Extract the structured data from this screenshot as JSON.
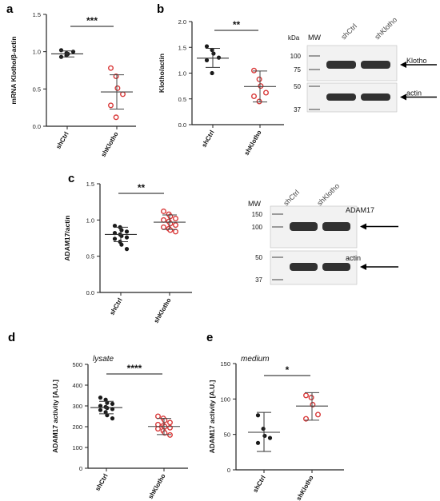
{
  "colors": {
    "ctrl": "#1a1a1a",
    "kd": "#d93a3a",
    "axis": "#222222",
    "blot_bg": "#f2f2f2",
    "band": "#1c1c1c"
  },
  "chart_data": [
    {
      "panel": "a",
      "type": "scatter",
      "ylabel": "mRNA Klotho/β-actin",
      "ylim": [
        0,
        1.5
      ],
      "yticks": [
        "0.0",
        "0.5",
        "1.0",
        "1.5"
      ],
      "categories": [
        "shCtrl",
        "shKlotho"
      ],
      "significance": "***",
      "series": [
        {
          "category": "shCtrl",
          "values": [
            0.93,
            0.95,
            0.97,
            1.0,
            1.02,
            0.98
          ],
          "mean": 0.97,
          "sd_low": 0.93,
          "sd_high": 1.01
        },
        {
          "category": "shKlotho",
          "values": [
            0.78,
            0.67,
            0.51,
            0.43,
            0.28,
            0.12
          ],
          "mean": 0.46,
          "sd_low": 0.23,
          "sd_high": 0.69
        }
      ]
    },
    {
      "panel": "b",
      "type": "scatter",
      "ylabel": "Klotho/actin",
      "ylim": [
        0,
        2.0
      ],
      "yticks": [
        "0.0",
        "0.5",
        "1.0",
        "1.5",
        "2.0"
      ],
      "categories": [
        "shCtrl",
        "shKlotho"
      ],
      "significance": "**",
      "series": [
        {
          "category": "shCtrl",
          "values": [
            1.52,
            1.45,
            1.38,
            1.3,
            1.25,
            1.0
          ],
          "mean": 1.29,
          "sd_low": 1.11,
          "sd_high": 1.48
        },
        {
          "category": "shKlotho",
          "values": [
            1.05,
            0.88,
            0.75,
            0.62,
            0.55,
            0.45
          ],
          "mean": 0.74,
          "sd_low": 0.44,
          "sd_high": 1.04
        }
      ]
    },
    {
      "panel": "c",
      "type": "scatter",
      "ylabel": "ADAM17/actin",
      "ylim": [
        0,
        1.5
      ],
      "yticks": [
        "0.0",
        "0.5",
        "1.0",
        "1.5"
      ],
      "categories": [
        "shCtrl",
        "shKlotho"
      ],
      "significance": "**",
      "series": [
        {
          "category": "shCtrl",
          "values": [
            0.92,
            0.9,
            0.86,
            0.84,
            0.82,
            0.8,
            0.78,
            0.76,
            0.74,
            0.7,
            0.66,
            0.6
          ],
          "mean": 0.8,
          "sd_low": 0.7,
          "sd_high": 0.9
        },
        {
          "category": "shKlotho",
          "values": [
            1.12,
            1.08,
            1.05,
            1.02,
            1.0,
            0.98,
            0.95,
            0.93,
            0.9,
            0.88,
            0.86,
            0.84
          ],
          "mean": 0.97,
          "sd_low": 0.87,
          "sd_high": 1.07
        }
      ]
    },
    {
      "panel": "d",
      "type": "scatter",
      "title": "lysate",
      "ylabel": "ADAM17 activity [A.U.]",
      "ylim": [
        0,
        500
      ],
      "yticks": [
        "0",
        "100",
        "200",
        "300",
        "400",
        "500"
      ],
      "categories": [
        "shCtrl",
        "shKlotho"
      ],
      "significance": "****",
      "series": [
        {
          "category": "shCtrl",
          "values": [
            340,
            330,
            315,
            310,
            300,
            295,
            290,
            285,
            280,
            270,
            255,
            240
          ],
          "mean": 292,
          "sd_low": 262,
          "sd_high": 322
        },
        {
          "category": "shKlotho",
          "values": [
            250,
            240,
            230,
            220,
            210,
            205,
            200,
            195,
            190,
            180,
            170,
            160
          ],
          "mean": 201,
          "sd_low": 162,
          "sd_high": 240
        }
      ]
    },
    {
      "panel": "e",
      "type": "scatter",
      "title": "medium",
      "ylabel": "ADAM17 activity [A.U.]",
      "ylim": [
        0,
        150
      ],
      "yticks": [
        "0",
        "50",
        "100",
        "150"
      ],
      "categories": [
        "shCtrl",
        "shKlotho"
      ],
      "significance": "*",
      "series": [
        {
          "category": "shCtrl",
          "values": [
            77,
            58,
            48,
            45,
            38
          ],
          "mean": 53,
          "sd_low": 26,
          "sd_high": 81
        },
        {
          "category": "shKlotho",
          "values": [
            105,
            102,
            92,
            78,
            72
          ],
          "mean": 90,
          "sd_low": 70,
          "sd_high": 109
        }
      ]
    }
  ],
  "blots": [
    {
      "panel": "b",
      "mw_label": "MW",
      "kda_label": "kDa",
      "lanes": [
        "shCtrl",
        "shKlotho"
      ],
      "strips": [
        {
          "markers": [
            "100",
            "75"
          ],
          "target": "Klotho"
        },
        {
          "markers": [
            "50",
            "37"
          ],
          "target": "actin"
        }
      ]
    },
    {
      "panel": "c",
      "mw_label": "MW",
      "lanes": [
        "shCtrl",
        "shKlotho"
      ],
      "strips": [
        {
          "markers": [
            "150",
            "100"
          ],
          "target": "ADAM17"
        },
        {
          "markers": [
            "50",
            "37"
          ],
          "target": "actin"
        }
      ]
    }
  ]
}
